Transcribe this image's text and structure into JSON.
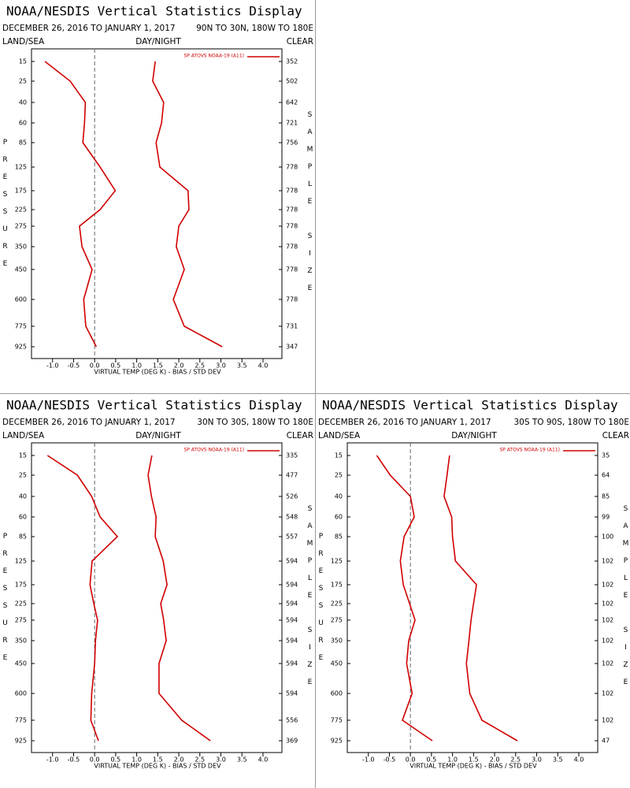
{
  "chart_data": [
    {
      "type": "line",
      "title": "NOAA/NESDIS Vertical Statistics Display",
      "subtitle": "DECEMBER 26, 2016 TO JANUARY 1, 2017",
      "region": "90N TO 30N, 180W TO 180E",
      "left_header": "LAND/SEA",
      "center_header": "DAY/NIGHT",
      "right_header": "CLEAR",
      "legend": "SP ATOVS NOAA-19 (A11)",
      "y_label": "PRESSURE",
      "y2_label": "SAMPLE SIZE",
      "x_label": "VIRTUAL TEMP (DEG K) - BIAS / STD DEV",
      "categories": [
        15,
        25,
        40,
        60,
        85,
        125,
        175,
        225,
        275,
        350,
        450,
        600,
        775,
        925
      ],
      "sample_sizes": [
        352,
        502,
        642,
        721,
        756,
        778,
        778,
        778,
        778,
        778,
        778,
        778,
        731,
        347
      ],
      "series": [
        {
          "color": "#d00000",
          "values": [
            -1.18,
            -0.58,
            -0.22,
            -0.24,
            -0.28,
            0.13,
            0.49,
            0.13,
            -0.36,
            -0.3,
            -0.06,
            -0.26,
            -0.21,
            0.04
          ]
        },
        {
          "color": "#d00000",
          "values": [
            1.44,
            1.38,
            1.64,
            1.59,
            1.46,
            1.55,
            2.22,
            2.24,
            2.0,
            1.94,
            2.13,
            1.87,
            2.13,
            3.03
          ]
        }
      ],
      "xlim": [
        -1.5,
        4.45
      ],
      "xticks": [
        {
          "value": -1,
          "label": "-1.0"
        },
        -0.5,
        {
          "value": 0,
          "label": "0.0"
        },
        0.5,
        {
          "value": 1,
          "label": "1.0"
        },
        1.5,
        {
          "value": 2,
          "label": "2.0"
        },
        2.5,
        {
          "value": 3,
          "label": "3.0"
        },
        3.5,
        {
          "value": 4,
          "label": "4.0"
        }
      ]
    },
    {
      "type": "line",
      "title": "NOAA/NESDIS Vertical Statistics Display",
      "subtitle": "DECEMBER 26, 2016 TO JANUARY 1, 2017",
      "region": "30N TO 30S, 180W TO 180E",
      "left_header": "LAND/SEA",
      "center_header": "DAY/NIGHT",
      "right_header": "CLEAR",
      "legend": "SP ATOVS NOAA-19 (A11)",
      "y_label": "PRESSURE",
      "y2_label": "SAMPLE SIZE",
      "x_label": "VIRTUAL TEMP (DEG K) - BIAS / STD DEV",
      "categories": [
        15,
        25,
        40,
        60,
        85,
        125,
        175,
        225,
        275,
        350,
        450,
        600,
        775,
        925
      ],
      "sample_sizes": [
        335,
        477,
        526,
        548,
        557,
        594,
        594,
        594,
        594,
        594,
        594,
        594,
        556,
        369
      ],
      "series": [
        {
          "color": "#d00000",
          "values": [
            -1.12,
            -0.41,
            -0.07,
            0.13,
            0.54,
            -0.06,
            -0.11,
            -0.02,
            0.07,
            0.02,
            0,
            -0.07,
            -0.09,
            0.09
          ]
        },
        {
          "color": "#d00000",
          "values": [
            1.36,
            1.27,
            1.35,
            1.46,
            1.44,
            1.63,
            1.72,
            1.57,
            1.64,
            1.7,
            1.53,
            1.53,
            2.07,
            2.75
          ]
        }
      ],
      "xlim": [
        -1.5,
        4.45
      ],
      "xticks": [
        {
          "value": -1,
          "label": "-1.0"
        },
        -0.5,
        {
          "value": 0,
          "label": "0.0"
        },
        0.5,
        {
          "value": 1,
          "label": "1.0"
        },
        1.5,
        {
          "value": 2,
          "label": "2.0"
        },
        2.5,
        {
          "value": 3,
          "label": "3.0"
        },
        3.5,
        {
          "value": 4,
          "label": "4.0"
        }
      ]
    },
    {
      "type": "line",
      "title": "NOAA/NESDIS Vertical Statistics Display",
      "subtitle": "DECEMBER 26, 2016 TO JANUARY 1, 2017",
      "region": "30S TO 90S, 180W TO 180E",
      "left_header": "LAND/SEA",
      "center_header": "DAY/NIGHT",
      "right_header": "CLEAR",
      "legend": "SP ATOVS NOAA-19 (A11)",
      "y_label": "PRESSURE",
      "y2_label": "SAMPLE SIZE",
      "x_label": "VIRTUAL TEMP (DEG K) - BIAS / STD DEV",
      "categories": [
        15,
        25,
        40,
        60,
        85,
        125,
        175,
        225,
        275,
        350,
        450,
        600,
        775,
        925
      ],
      "sample_sizes": [
        35,
        64,
        85,
        99,
        100,
        102,
        102,
        102,
        102,
        102,
        102,
        102,
        102,
        47
      ],
      "series": [
        {
          "color": "#d00000",
          "values": [
            -0.8,
            -0.48,
            0.0,
            0.09,
            -0.15,
            -0.24,
            -0.17,
            -0.02,
            0.11,
            -0.04,
            -0.09,
            0.04,
            -0.19,
            0.52
          ]
        },
        {
          "color": "#d00000",
          "values": [
            0.93,
            0.87,
            0.8,
            0.98,
            1.0,
            1.07,
            1.57,
            1.5,
            1.44,
            1.39,
            1.33,
            1.41,
            1.7,
            2.54
          ]
        }
      ],
      "xlim": [
        -1.5,
        4.45
      ],
      "xticks": [
        {
          "value": -1,
          "label": "-1.0"
        },
        -0.5,
        {
          "value": 0,
          "label": "0.0"
        },
        0.5,
        {
          "value": 1,
          "label": "1.0"
        },
        1.5,
        {
          "value": 2,
          "label": "2.0"
        },
        2.5,
        {
          "value": 3,
          "label": "3.0"
        },
        3.5,
        {
          "value": 4,
          "label": "4.0"
        }
      ]
    }
  ]
}
